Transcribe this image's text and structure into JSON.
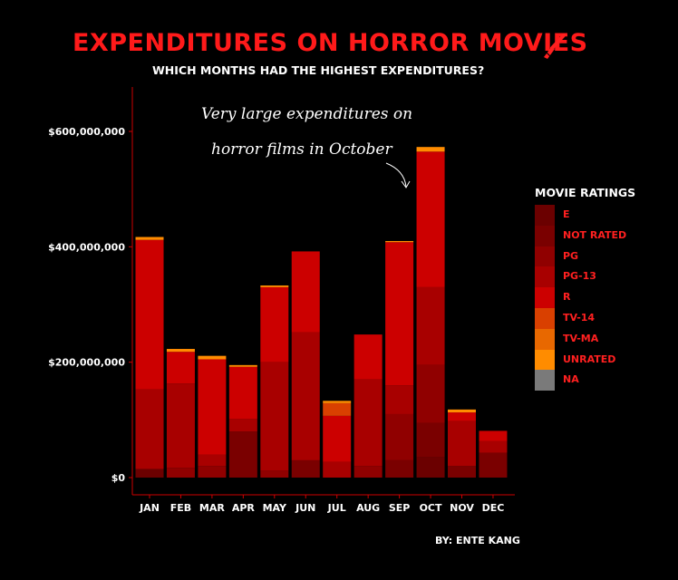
{
  "title": "Expenditures on Horror Movies",
  "subtitle": "Which months had the highest expenditures?",
  "byline": "By: Ente Kang",
  "annotation": [
    "Very large expenditures on",
    "horror films in October"
  ],
  "legend_title": "Movie Ratings",
  "icons": {
    "title_icon": "paintbrush-icon"
  },
  "chart_data": {
    "type": "bar",
    "stacked": true,
    "title": "Expenditures on Horror Movies",
    "subtitle": "Which months had the highest expenditures?",
    "xlabel": "",
    "ylabel": "",
    "ylim": [
      0,
      660000000
    ],
    "y_ticks": [
      0,
      200000000,
      400000000,
      600000000
    ],
    "y_tick_labels": [
      "$0",
      "$200,000,000",
      "$400,000,000",
      "$600,000,000"
    ],
    "categories": [
      "Jan",
      "Feb",
      "Mar",
      "Apr",
      "May",
      "Jun",
      "Jul",
      "Aug",
      "Sep",
      "Oct",
      "Nov",
      "Dec"
    ],
    "legend_position": "right",
    "grid": false,
    "series": [
      {
        "name": "E",
        "color": "#6b0000",
        "values": [
          15000000,
          0,
          0,
          0,
          0,
          0,
          0,
          0,
          0,
          35000000,
          0,
          0
        ]
      },
      {
        "name": "NOT RATED",
        "color": "#7a0000",
        "values": [
          0,
          0,
          0,
          80000000,
          0,
          30000000,
          0,
          0,
          30000000,
          60000000,
          20000000,
          43000000
        ]
      },
      {
        "name": "PG",
        "color": "#900000",
        "values": [
          0,
          17000000,
          20000000,
          0,
          12000000,
          0,
          0,
          20000000,
          80000000,
          100000000,
          0,
          0
        ]
      },
      {
        "name": "PG-13",
        "color": "#a80000",
        "values": [
          138000000,
          146000000,
          20000000,
          22000000,
          188000000,
          222000000,
          27000000,
          150000000,
          50000000,
          135000000,
          78000000,
          20000000
        ]
      },
      {
        "name": "R",
        "color": "#cc0000",
        "values": [
          259000000,
          55000000,
          165000000,
          90000000,
          130000000,
          140000000,
          80000000,
          78000000,
          248000000,
          235000000,
          15000000,
          18000000
        ]
      },
      {
        "name": "TV-14",
        "color": "#d94000",
        "values": [
          0,
          0,
          0,
          0,
          0,
          0,
          22000000,
          0,
          0,
          0,
          0,
          0
        ]
      },
      {
        "name": "TV-MA",
        "color": "#e86800",
        "values": [
          0,
          0,
          0,
          0,
          0,
          0,
          0,
          0,
          0,
          0,
          0,
          0
        ]
      },
      {
        "name": "UNRATED",
        "color": "#ff8c00",
        "values": [
          5000000,
          5000000,
          6000000,
          3000000,
          3000000,
          0,
          4000000,
          0,
          2000000,
          8000000,
          5000000,
          0
        ]
      },
      {
        "name": "NA",
        "color": "#7a7a7a",
        "values": [
          0,
          0,
          0,
          0,
          0,
          0,
          0,
          0,
          0,
          0,
          0,
          0
        ]
      }
    ]
  }
}
